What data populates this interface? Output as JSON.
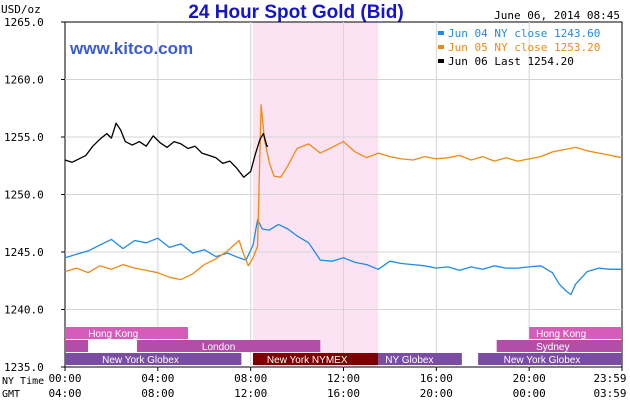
{
  "chart_data": {
    "type": "line",
    "title": "24 Hour Spot Gold (Bid)",
    "date_label": "June 06, 2014 08:45",
    "source": "www.kitco.com",
    "ylabel": "USD/oz",
    "ylim": [
      1235,
      1265
    ],
    "yticks": [
      "1265.0",
      "1260.0",
      "1255.0",
      "1250.0",
      "1245.0",
      "1240.0",
      "1235.0"
    ],
    "x_axis_ny_label": "NY Time",
    "x_axis_gmt_label": "GMT",
    "x_ticks_ny": [
      "00:00",
      "04:00",
      "08:00",
      "12:00",
      "16:00",
      "20:00",
      "23:59"
    ],
    "x_ticks_gmt": [
      "04:00",
      "08:00",
      "12:00",
      "16:00",
      "20:00",
      "00:00",
      "03:59"
    ],
    "highlight_hours": [
      8.1,
      13.5
    ],
    "markets": {
      "hong_kong": "Hong Kong",
      "london": "London",
      "sydney": "Sydney",
      "new_york_globex": "New York Globex",
      "new_york_nymex": "New York NYMEX",
      "ny_globex": "NY Globex"
    },
    "series": [
      {
        "name": "Jun 04 NY close 1243.60",
        "color": "#1e8be8",
        "points": [
          [
            0,
            1244.5
          ],
          [
            0.5,
            1244.8
          ],
          [
            1,
            1245.1
          ],
          [
            1.5,
            1245.6
          ],
          [
            2,
            1246.1
          ],
          [
            2.5,
            1245.3
          ],
          [
            3,
            1246.0
          ],
          [
            3.5,
            1245.8
          ],
          [
            4,
            1246.2
          ],
          [
            4.5,
            1245.4
          ],
          [
            5,
            1245.7
          ],
          [
            5.5,
            1244.9
          ],
          [
            6,
            1245.2
          ],
          [
            6.5,
            1244.6
          ],
          [
            7,
            1244.9
          ],
          [
            7.5,
            1244.5
          ],
          [
            7.8,
            1244.3
          ],
          [
            8.1,
            1245.6
          ],
          [
            8.3,
            1247.8
          ],
          [
            8.5,
            1247.0
          ],
          [
            8.8,
            1246.9
          ],
          [
            9.2,
            1247.4
          ],
          [
            9.6,
            1247.0
          ],
          [
            10,
            1246.4
          ],
          [
            10.5,
            1245.8
          ],
          [
            11,
            1244.3
          ],
          [
            11.5,
            1244.2
          ],
          [
            12,
            1244.5
          ],
          [
            12.5,
            1244.1
          ],
          [
            13,
            1243.9
          ],
          [
            13.5,
            1243.5
          ],
          [
            14,
            1244.2
          ],
          [
            14.5,
            1244.0
          ],
          [
            15,
            1243.9
          ],
          [
            15.5,
            1243.8
          ],
          [
            16,
            1243.6
          ],
          [
            16.5,
            1243.7
          ],
          [
            17,
            1243.4
          ],
          [
            17.5,
            1243.7
          ],
          [
            18,
            1243.5
          ],
          [
            18.5,
            1243.8
          ],
          [
            19,
            1243.6
          ],
          [
            19.5,
            1243.6
          ],
          [
            20,
            1243.7
          ],
          [
            20.5,
            1243.8
          ],
          [
            21,
            1243.2
          ],
          [
            21.3,
            1242.2
          ],
          [
            21.6,
            1241.6
          ],
          [
            21.8,
            1241.3
          ],
          [
            22,
            1242.2
          ],
          [
            22.5,
            1243.3
          ],
          [
            23,
            1243.6
          ],
          [
            23.5,
            1243.5
          ],
          [
            24,
            1243.5
          ]
        ]
      },
      {
        "name": "Jun 05 NY close 1253.20",
        "color": "#f08a10",
        "points": [
          [
            0,
            1243.3
          ],
          [
            0.5,
            1243.6
          ],
          [
            1,
            1243.2
          ],
          [
            1.5,
            1243.8
          ],
          [
            2,
            1243.5
          ],
          [
            2.5,
            1243.9
          ],
          [
            3,
            1243.6
          ],
          [
            3.5,
            1243.4
          ],
          [
            4,
            1243.2
          ],
          [
            4.5,
            1242.8
          ],
          [
            5,
            1242.6
          ],
          [
            5.5,
            1243.1
          ],
          [
            6,
            1243.9
          ],
          [
            6.5,
            1244.4
          ],
          [
            7,
            1245.1
          ],
          [
            7.5,
            1246.0
          ],
          [
            7.7,
            1244.8
          ],
          [
            7.9,
            1243.8
          ],
          [
            8.1,
            1244.5
          ],
          [
            8.3,
            1245.5
          ],
          [
            8.45,
            1257.8
          ],
          [
            8.6,
            1254.7
          ],
          [
            8.8,
            1252.8
          ],
          [
            9,
            1251.6
          ],
          [
            9.3,
            1251.5
          ],
          [
            9.6,
            1252.5
          ],
          [
            10,
            1254.0
          ],
          [
            10.5,
            1254.4
          ],
          [
            11,
            1253.6
          ],
          [
            11.5,
            1254.1
          ],
          [
            12,
            1254.6
          ],
          [
            12.5,
            1253.7
          ],
          [
            13,
            1253.2
          ],
          [
            13.5,
            1253.6
          ],
          [
            14,
            1253.3
          ],
          [
            14.5,
            1253.1
          ],
          [
            15,
            1253.0
          ],
          [
            15.5,
            1253.3
          ],
          [
            16,
            1253.1
          ],
          [
            16.5,
            1253.2
          ],
          [
            17,
            1253.4
          ],
          [
            17.5,
            1253.0
          ],
          [
            18,
            1253.3
          ],
          [
            18.5,
            1252.9
          ],
          [
            19,
            1253.2
          ],
          [
            19.5,
            1252.9
          ],
          [
            20,
            1253.1
          ],
          [
            20.5,
            1253.3
          ],
          [
            21,
            1253.7
          ],
          [
            21.5,
            1253.9
          ],
          [
            22,
            1254.1
          ],
          [
            22.5,
            1253.8
          ],
          [
            23,
            1253.6
          ],
          [
            23.5,
            1253.4
          ],
          [
            24,
            1253.2
          ]
        ]
      },
      {
        "name": "Jun 06 Last 1254.20",
        "color": "#000000",
        "points": [
          [
            0,
            1253.0
          ],
          [
            0.3,
            1252.8
          ],
          [
            0.6,
            1253.1
          ],
          [
            0.9,
            1253.4
          ],
          [
            1.2,
            1254.2
          ],
          [
            1.5,
            1254.8
          ],
          [
            1.8,
            1255.3
          ],
          [
            2,
            1254.9
          ],
          [
            2.2,
            1256.2
          ],
          [
            2.4,
            1255.6
          ],
          [
            2.6,
            1254.6
          ],
          [
            2.9,
            1254.3
          ],
          [
            3.2,
            1254.6
          ],
          [
            3.5,
            1254.2
          ],
          [
            3.8,
            1255.1
          ],
          [
            4.1,
            1254.5
          ],
          [
            4.4,
            1254.1
          ],
          [
            4.7,
            1254.6
          ],
          [
            5,
            1254.4
          ],
          [
            5.3,
            1254.0
          ],
          [
            5.6,
            1254.2
          ],
          [
            5.9,
            1253.6
          ],
          [
            6.2,
            1253.4
          ],
          [
            6.5,
            1253.2
          ],
          [
            6.8,
            1252.7
          ],
          [
            7.1,
            1252.9
          ],
          [
            7.4,
            1252.3
          ],
          [
            7.7,
            1251.5
          ],
          [
            8.0,
            1252.0
          ],
          [
            8.2,
            1253.5
          ],
          [
            8.4,
            1254.8
          ],
          [
            8.55,
            1255.3
          ],
          [
            8.7,
            1254.2
          ],
          [
            8.75,
            1254.2
          ]
        ]
      }
    ]
  }
}
